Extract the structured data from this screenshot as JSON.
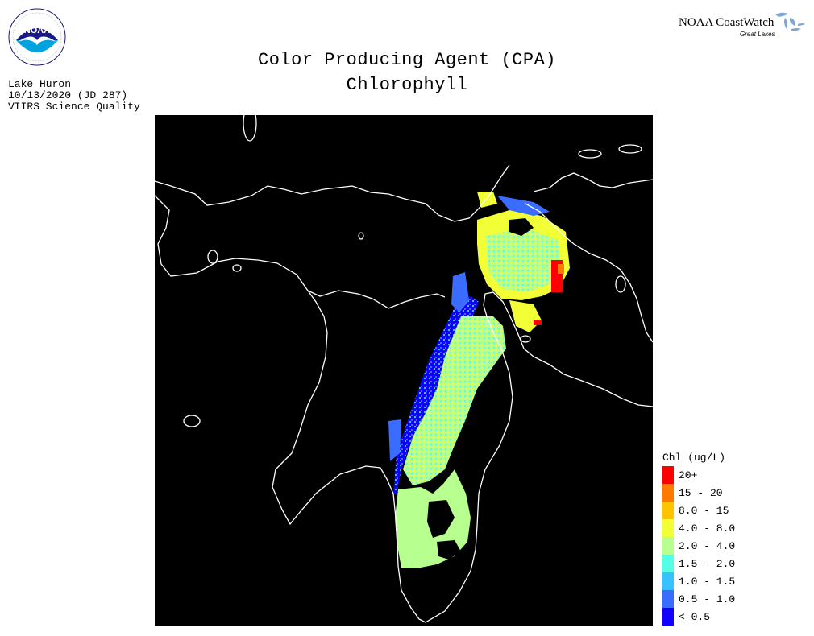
{
  "header": {
    "brand": "NOAA CoastWatch",
    "brand_sub": "Great Lakes",
    "title_line1": "Color Producing Agent (CPA)",
    "title_line2": "Chlorophyll"
  },
  "meta": {
    "lake": "Lake Huron",
    "date": "10/13/2020 (JD 287)",
    "sensor": "VIIRS Science Quality"
  },
  "logo": {
    "text": "NOAA",
    "icon": "noaa-seagull-emblem"
  },
  "legend": {
    "title": "Chl (ug/L)",
    "items": [
      {
        "label": "20+",
        "color": "#ff0000"
      },
      {
        "label": "15 - 20",
        "color": "#ff7a00"
      },
      {
        "label": "8.0 - 15",
        "color": "#ffc400"
      },
      {
        "label": "4.0 - 8.0",
        "color": "#f2ff36"
      },
      {
        "label": "2.0 - 4.0",
        "color": "#b7ff8e"
      },
      {
        "label": "1.5 - 2.0",
        "color": "#55ffe6"
      },
      {
        "label": "1.0 - 1.5",
        "color": "#37c1ff"
      },
      {
        "label": "0.5 - 1.0",
        "color": "#3a6cff"
      },
      {
        "label": "< 0.5",
        "color": "#1100ff"
      }
    ]
  },
  "colors": {
    "land_background": "#000000",
    "coastline": "#ffffff"
  }
}
